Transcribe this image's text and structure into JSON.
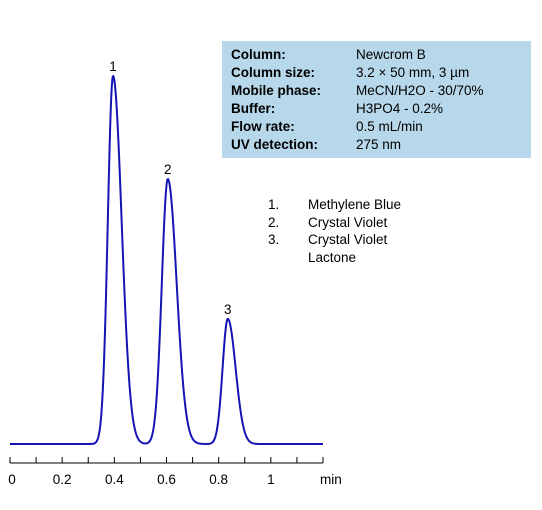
{
  "chart_data": {
    "type": "line",
    "x_unit_label": "min",
    "xlim": [
      0,
      1.2
    ],
    "x_ticks": [
      0,
      0.2,
      0.4,
      0.6,
      0.8,
      1
    ],
    "x_tick_labels": [
      "0",
      "0.2",
      "0.4",
      "0.6",
      "0.8",
      "1"
    ],
    "grid": false,
    "line_color": "#1414b4",
    "baseline": 0.005,
    "peaks": [
      {
        "label": "1",
        "rt": 0.395,
        "height": 1.0,
        "sigma_left": 0.02,
        "sigma_right": 0.033
      },
      {
        "label": "2",
        "rt": 0.605,
        "height": 0.72,
        "sigma_left": 0.023,
        "sigma_right": 0.034
      },
      {
        "label": "3",
        "rt": 0.835,
        "height": 0.34,
        "sigma_left": 0.02,
        "sigma_right": 0.03
      }
    ]
  },
  "conditions": [
    {
      "label": "Column:",
      "value": "Newcrom B"
    },
    {
      "label": "Column size:",
      "value": "3.2 × 50 mm, 3 µm"
    },
    {
      "label": "Mobile phase:",
      "value": "MeCN/H2O - 30/70%"
    },
    {
      "label": "Buffer:",
      "value": "H3PO4 - 0.2%"
    },
    {
      "label": "Flow rate:",
      "value": "0.5 mL/min"
    },
    {
      "label": "UV detection:",
      "value": "275 nm"
    }
  ],
  "legend": [
    {
      "num": "1.",
      "name": "Methylene Blue"
    },
    {
      "num": "2.",
      "name": "Crystal Violet"
    },
    {
      "num": "3.",
      "name": "Crystal Violet Lactone"
    }
  ]
}
